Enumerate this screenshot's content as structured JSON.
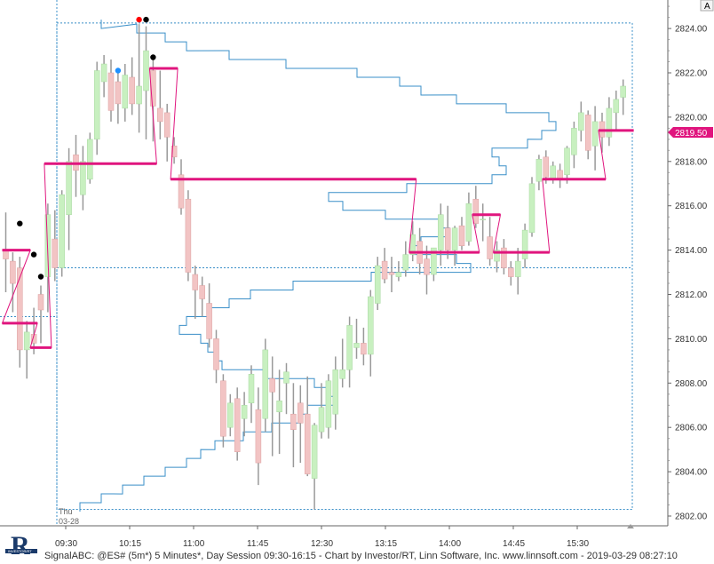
{
  "chart_data": {
    "type": "candlestick",
    "symbol_info": "SignalABC: @ES# (5m*) 5 Minutes*, Day Session 09:30-16:15 - Chart by Investor/RT, Linn Software, Inc. www.linnsoft.com - 2019-03-29 08:27:10",
    "day_label": "Thu",
    "date_label": "03-28",
    "last_price": "2819.50",
    "scale_button": "A",
    "ylim": [
      2801.4,
      2825.2
    ],
    "y_ticks": [
      "2802.00",
      "2804.00",
      "2806.00",
      "2808.00",
      "2810.00",
      "2812.00",
      "2814.00",
      "2816.00",
      "2818.00",
      "2820.00",
      "2822.00",
      "2824.00"
    ],
    "x_ticks": [
      "09:30",
      "10:15",
      "11:00",
      "11:45",
      "12:30",
      "13:15",
      "14:00",
      "14:45",
      "15:30"
    ],
    "colors": {
      "up": "#c8f0c0",
      "down": "#f2c4c4",
      "wick": "#999999",
      "vwap": "#e0157e",
      "profile": "#3a8fc8",
      "grid_dotted": "#3a8fc8"
    },
    "candles": [
      {
        "o": 2814.0,
        "h": 2815.7,
        "l": 2812.1,
        "c": 2813.6
      },
      {
        "o": 2813.5,
        "h": 2813.9,
        "l": 2811.2,
        "c": 2812.5
      },
      {
        "o": 2813.2,
        "h": 2813.7,
        "l": 2808.7,
        "c": 2809.5
      },
      {
        "o": 2809.5,
        "h": 2810.8,
        "l": 2808.2,
        "c": 2810.3
      },
      {
        "o": 2810.2,
        "h": 2811.4,
        "l": 2809.3,
        "c": 2809.8
      },
      {
        "o": 2812.0,
        "h": 2812.4,
        "l": 2809.8,
        "c": 2811.3
      },
      {
        "o": 2812.8,
        "h": 2816.1,
        "l": 2811.2,
        "c": 2815.6
      },
      {
        "o": 2814.5,
        "h": 2815.8,
        "l": 2812.6,
        "c": 2813.2
      },
      {
        "o": 2813.2,
        "h": 2816.7,
        "l": 2812.8,
        "c": 2816.5
      },
      {
        "o": 2815.6,
        "h": 2818.6,
        "l": 2814.0,
        "c": 2818.0
      },
      {
        "o": 2818.3,
        "h": 2819.2,
        "l": 2816.4,
        "c": 2817.6
      },
      {
        "o": 2816.5,
        "h": 2818.7,
        "l": 2815.8,
        "c": 2818.0
      },
      {
        "o": 2817.2,
        "h": 2819.3,
        "l": 2817.0,
        "c": 2819.0
      },
      {
        "o": 2819.0,
        "h": 2822.5,
        "l": 2818.3,
        "c": 2822.1
      },
      {
        "o": 2821.6,
        "h": 2822.8,
        "l": 2820.9,
        "c": 2822.4
      },
      {
        "o": 2822.0,
        "h": 2822.6,
        "l": 2819.8,
        "c": 2820.3
      },
      {
        "o": 2821.6,
        "h": 2822.2,
        "l": 2819.7,
        "c": 2820.6
      },
      {
        "o": 2820.4,
        "h": 2822.4,
        "l": 2819.8,
        "c": 2821.9
      },
      {
        "o": 2821.8,
        "h": 2822.7,
        "l": 2820.1,
        "c": 2820.6
      },
      {
        "o": 2820.6,
        "h": 2824.2,
        "l": 2819.3,
        "c": 2821.4
      },
      {
        "o": 2821.2,
        "h": 2824.1,
        "l": 2819.0,
        "c": 2823.0
      },
      {
        "o": 2822.1,
        "h": 2822.7,
        "l": 2818.9,
        "c": 2820.5
      },
      {
        "o": 2820.4,
        "h": 2822.1,
        "l": 2819.0,
        "c": 2819.8
      },
      {
        "o": 2820.2,
        "h": 2820.6,
        "l": 2818.0,
        "c": 2819.1
      },
      {
        "o": 2818.7,
        "h": 2819.1,
        "l": 2817.9,
        "c": 2818.2
      },
      {
        "o": 2817.4,
        "h": 2818.1,
        "l": 2815.6,
        "c": 2815.9
      },
      {
        "o": 2816.3,
        "h": 2816.7,
        "l": 2812.6,
        "c": 2813.0
      },
      {
        "o": 2812.9,
        "h": 2813.3,
        "l": 2810.9,
        "c": 2812.2
      },
      {
        "o": 2812.4,
        "h": 2812.8,
        "l": 2811.0,
        "c": 2811.8
      },
      {
        "o": 2811.6,
        "h": 2812.5,
        "l": 2809.6,
        "c": 2810.0
      },
      {
        "o": 2810.0,
        "h": 2810.4,
        "l": 2808.0,
        "c": 2808.6
      },
      {
        "o": 2808.1,
        "h": 2808.4,
        "l": 2805.1,
        "c": 2805.6
      },
      {
        "o": 2806.0,
        "h": 2807.5,
        "l": 2805.6,
        "c": 2807.1
      },
      {
        "o": 2807.3,
        "h": 2807.8,
        "l": 2804.5,
        "c": 2804.9
      },
      {
        "o": 2806.4,
        "h": 2807.6,
        "l": 2805.6,
        "c": 2807.0
      },
      {
        "o": 2807.1,
        "h": 2808.8,
        "l": 2806.2,
        "c": 2808.4
      },
      {
        "o": 2806.8,
        "h": 2807.8,
        "l": 2803.4,
        "c": 2804.4
      },
      {
        "o": 2806.4,
        "h": 2810.0,
        "l": 2805.8,
        "c": 2809.5
      },
      {
        "o": 2808.2,
        "h": 2809.2,
        "l": 2804.7,
        "c": 2807.6
      },
      {
        "o": 2806.7,
        "h": 2808.6,
        "l": 2804.8,
        "c": 2807.2
      },
      {
        "o": 2808.0,
        "h": 2808.9,
        "l": 2806.6,
        "c": 2808.5
      },
      {
        "o": 2806.6,
        "h": 2808.0,
        "l": 2804.2,
        "c": 2805.9
      },
      {
        "o": 2807.1,
        "h": 2807.9,
        "l": 2804.4,
        "c": 2806.2
      },
      {
        "o": 2806.6,
        "h": 2808.3,
        "l": 2803.8,
        "c": 2803.9
      },
      {
        "o": 2803.7,
        "h": 2806.2,
        "l": 2802.3,
        "c": 2806.1
      },
      {
        "o": 2805.8,
        "h": 2808.0,
        "l": 2805.5,
        "c": 2806.9
      },
      {
        "o": 2806.0,
        "h": 2808.4,
        "l": 2805.5,
        "c": 2808.1
      },
      {
        "o": 2806.6,
        "h": 2809.2,
        "l": 2805.9,
        "c": 2808.6
      },
      {
        "o": 2808.2,
        "h": 2810.0,
        "l": 2807.8,
        "c": 2808.6
      },
      {
        "o": 2808.6,
        "h": 2811.0,
        "l": 2807.8,
        "c": 2810.6
      },
      {
        "o": 2809.6,
        "h": 2810.9,
        "l": 2809.1,
        "c": 2809.8
      },
      {
        "o": 2809.8,
        "h": 2810.5,
        "l": 2808.8,
        "c": 2809.3
      },
      {
        "o": 2809.3,
        "h": 2812.2,
        "l": 2808.3,
        "c": 2811.9
      },
      {
        "o": 2811.6,
        "h": 2813.7,
        "l": 2811.3,
        "c": 2813.3
      },
      {
        "o": 2813.5,
        "h": 2814.1,
        "l": 2812.5,
        "c": 2812.7
      },
      {
        "o": 2813.0,
        "h": 2813.7,
        "l": 2812.1,
        "c": 2812.9
      },
      {
        "o": 2812.8,
        "h": 2813.5,
        "l": 2812.6,
        "c": 2813.0
      },
      {
        "o": 2813.1,
        "h": 2814.4,
        "l": 2812.8,
        "c": 2813.8
      },
      {
        "o": 2813.8,
        "h": 2815.3,
        "l": 2813.5,
        "c": 2814.7
      },
      {
        "o": 2814.4,
        "h": 2815.0,
        "l": 2812.9,
        "c": 2813.4
      },
      {
        "o": 2813.6,
        "h": 2814.2,
        "l": 2812.0,
        "c": 2812.9
      },
      {
        "o": 2812.9,
        "h": 2814.1,
        "l": 2812.6,
        "c": 2814.1
      },
      {
        "o": 2814.0,
        "h": 2816.1,
        "l": 2813.3,
        "c": 2815.6
      },
      {
        "o": 2815.0,
        "h": 2816.0,
        "l": 2813.6,
        "c": 2814.0
      },
      {
        "o": 2814.0,
        "h": 2815.1,
        "l": 2813.3,
        "c": 2815.0
      },
      {
        "o": 2815.1,
        "h": 2815.5,
        "l": 2814.0,
        "c": 2814.2
      },
      {
        "o": 2814.4,
        "h": 2816.6,
        "l": 2814.2,
        "c": 2816.1
      },
      {
        "o": 2816.3,
        "h": 2816.9,
        "l": 2815.0,
        "c": 2815.2
      },
      {
        "o": 2815.4,
        "h": 2816.1,
        "l": 2814.4,
        "c": 2815.4
      },
      {
        "o": 2814.6,
        "h": 2815.5,
        "l": 2813.3,
        "c": 2813.6
      },
      {
        "o": 2813.5,
        "h": 2814.4,
        "l": 2813.0,
        "c": 2814.0
      },
      {
        "o": 2814.1,
        "h": 2814.5,
        "l": 2812.9,
        "c": 2813.2
      },
      {
        "o": 2813.2,
        "h": 2813.5,
        "l": 2812.4,
        "c": 2812.8
      },
      {
        "o": 2812.8,
        "h": 2814.1,
        "l": 2812.0,
        "c": 2813.5
      },
      {
        "o": 2813.6,
        "h": 2815.2,
        "l": 2813.2,
        "c": 2814.9
      },
      {
        "o": 2814.8,
        "h": 2817.3,
        "l": 2814.6,
        "c": 2817.0
      },
      {
        "o": 2817.1,
        "h": 2818.3,
        "l": 2816.7,
        "c": 2818.1
      },
      {
        "o": 2818.2,
        "h": 2818.5,
        "l": 2817.0,
        "c": 2817.3
      },
      {
        "o": 2817.2,
        "h": 2818.0,
        "l": 2817.0,
        "c": 2817.8
      },
      {
        "o": 2817.6,
        "h": 2817.9,
        "l": 2816.8,
        "c": 2817.2
      },
      {
        "o": 2817.4,
        "h": 2818.7,
        "l": 2817.0,
        "c": 2818.6
      },
      {
        "o": 2818.3,
        "h": 2819.8,
        "l": 2817.7,
        "c": 2819.5
      },
      {
        "o": 2819.4,
        "h": 2820.7,
        "l": 2818.9,
        "c": 2820.2
      },
      {
        "o": 2820.1,
        "h": 2820.3,
        "l": 2818.1,
        "c": 2818.5
      },
      {
        "o": 2818.7,
        "h": 2820.5,
        "l": 2817.6,
        "c": 2819.8
      },
      {
        "o": 2819.8,
        "h": 2820.2,
        "l": 2818.4,
        "c": 2819.1
      },
      {
        "o": 2819.1,
        "h": 2820.9,
        "l": 2818.7,
        "c": 2820.4
      },
      {
        "o": 2820.2,
        "h": 2821.2,
        "l": 2819.4,
        "c": 2820.8
      },
      {
        "o": 2820.9,
        "h": 2821.7,
        "l": 2820.1,
        "c": 2821.4
      }
    ],
    "vwap_steps": [
      {
        "from": 0,
        "to": 3,
        "v": 2814.0
      },
      {
        "from": 0,
        "to": 4,
        "v": 2810.7
      },
      {
        "from": 4,
        "to": 6,
        "v": 2809.6
      },
      {
        "from": 6,
        "to": 21,
        "v": 2817.9
      },
      {
        "from": 21,
        "to": 24,
        "v": 2822.2
      },
      {
        "from": 24,
        "to": 58,
        "v": 2817.2
      },
      {
        "from": 58,
        "to": 67,
        "v": 2813.9
      },
      {
        "from": 67,
        "to": 70,
        "v": 2815.6
      },
      {
        "from": 70,
        "to": 77,
        "v": 2813.9
      },
      {
        "from": 77,
        "to": 85,
        "v": 2817.2
      },
      {
        "from": 85,
        "to": 89,
        "v": 2819.4
      }
    ],
    "signal_dots": [
      {
        "i": 4,
        "price": 2813.8,
        "color": "#000000"
      },
      {
        "i": 2,
        "price": 2815.2,
        "color": "#000000"
      },
      {
        "i": 5,
        "price": 2812.8,
        "color": "#000000"
      },
      {
        "i": 19,
        "price": 2824.4,
        "color": "#ff0000"
      },
      {
        "i": 20,
        "price": 2824.4,
        "color": "#000000"
      },
      {
        "i": 16,
        "price": 2822.1,
        "color": "#1e90ff"
      },
      {
        "i": 21,
        "price": 2822.7,
        "color": "#000000"
      }
    ],
    "profile": [
      {
        "p": 2824.2,
        "x": "09:55"
      },
      {
        "p": 2824.0,
        "x": "10:20"
      },
      {
        "p": 2823.6,
        "x": "10:40"
      },
      {
        "p": 2823.2,
        "x": "10:55"
      },
      {
        "p": 2822.8,
        "x": "11:25"
      },
      {
        "p": 2822.4,
        "x": "12:05"
      },
      {
        "p": 2822.0,
        "x": "12:55"
      },
      {
        "p": 2821.6,
        "x": "13:25"
      },
      {
        "p": 2821.2,
        "x": "13:40"
      },
      {
        "p": 2820.8,
        "x": "14:05"
      },
      {
        "p": 2820.4,
        "x": "14:40"
      },
      {
        "p": 2820.0,
        "x": "15:10"
      },
      {
        "p": 2819.6,
        "x": "15:15"
      },
      {
        "p": 2819.2,
        "x": "15:05"
      },
      {
        "p": 2818.8,
        "x": "14:55"
      },
      {
        "p": 2818.4,
        "x": "14:30"
      },
      {
        "p": 2818.0,
        "x": "14:35"
      },
      {
        "p": 2817.6,
        "x": "14:40"
      },
      {
        "p": 2817.2,
        "x": "14:30"
      },
      {
        "p": 2816.8,
        "x": "13:30"
      },
      {
        "p": 2816.4,
        "x": "12:35"
      },
      {
        "p": 2816.0,
        "x": "12:45"
      },
      {
        "p": 2815.6,
        "x": "13:15"
      },
      {
        "p": 2815.2,
        "x": "13:55"
      },
      {
        "p": 2814.8,
        "x": "14:00"
      },
      {
        "p": 2814.4,
        "x": "13:40"
      },
      {
        "p": 2814.0,
        "x": "13:35"
      },
      {
        "p": 2813.6,
        "x": "14:05"
      },
      {
        "p": 2813.2,
        "x": "14:15"
      },
      {
        "p": 2812.8,
        "x": "13:05"
      },
      {
        "p": 2812.4,
        "x": "12:10"
      },
      {
        "p": 2812.0,
        "x": "11:40"
      },
      {
        "p": 2811.6,
        "x": "11:25"
      },
      {
        "p": 2811.2,
        "x": "11:10"
      },
      {
        "p": 2810.8,
        "x": "10:55"
      },
      {
        "p": 2810.4,
        "x": "10:50"
      },
      {
        "p": 2810.0,
        "x": "11:05"
      },
      {
        "p": 2809.6,
        "x": "11:10"
      },
      {
        "p": 2809.2,
        "x": "11:15"
      },
      {
        "p": 2808.8,
        "x": "11:20"
      },
      {
        "p": 2808.4,
        "x": "11:50"
      },
      {
        "p": 2808.0,
        "x": "12:25"
      },
      {
        "p": 2807.6,
        "x": "12:35"
      },
      {
        "p": 2807.2,
        "x": "12:40"
      },
      {
        "p": 2806.8,
        "x": "12:20"
      },
      {
        "p": 2806.4,
        "x": "12:15"
      },
      {
        "p": 2806.0,
        "x": "11:55"
      },
      {
        "p": 2805.6,
        "x": "11:35"
      },
      {
        "p": 2805.2,
        "x": "11:15"
      },
      {
        "p": 2804.8,
        "x": "11:05"
      },
      {
        "p": 2804.4,
        "x": "10:55"
      },
      {
        "p": 2804.0,
        "x": "10:40"
      },
      {
        "p": 2803.6,
        "x": "10:25"
      },
      {
        "p": 2803.2,
        "x": "10:10"
      },
      {
        "p": 2802.8,
        "x": "09:55"
      },
      {
        "p": 2802.4,
        "x": "09:40"
      }
    ]
  },
  "footer": {
    "text": "SignalABC: @ES# (5m*) 5 Minutes*, Day Session 09:30-16:15 - Chart by Investor/RT, Linn Software, Inc. www.linnsoft.com - 2019-03-29 08:27:10"
  },
  "branding": {
    "logo_letter": "R",
    "logo_subtext": "INVESTOR/RT"
  }
}
